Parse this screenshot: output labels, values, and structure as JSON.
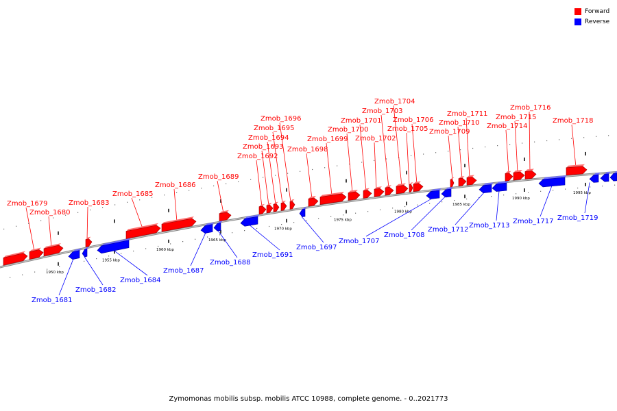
{
  "legend": {
    "forward_label": "Forward",
    "reverse_label": "Reverse",
    "forward_color": "#ff0000",
    "reverse_color": "#0000ff"
  },
  "caption": "Zymomonas mobilis subsp. mobilis ATCC 10988, complete genome. - 0..2021773",
  "scale_labels": [
    "1950 kbp",
    "1955 kbp",
    "1960 kbp",
    "1965 kbp",
    "1970 kbp",
    "1975 kbp",
    "1980 kbp",
    "1985 kbp",
    "1990 kbp",
    "1995 kbp"
  ],
  "genes_forward": [
    "Zmob_1679",
    "Zmob_1680",
    "Zmob_1683",
    "Zmob_1685",
    "Zmob_1686",
    "Zmob_1689",
    "Zmob_1692",
    "Zmob_1693",
    "Zmob_1694",
    "Zmob_1695",
    "Zmob_1696",
    "Zmob_1698",
    "Zmob_1699",
    "Zmob_1700",
    "Zmob_1701",
    "Zmob_1702",
    "Zmob_1703",
    "Zmob_1704",
    "Zmob_1705",
    "Zmob_1706",
    "Zmob_1709",
    "Zmob_1710",
    "Zmob_1711",
    "Zmob_1714",
    "Zmob_1715",
    "Zmob_1716",
    "Zmob_1718"
  ],
  "genes_reverse": [
    "Zmob_1681",
    "Zmob_1682",
    "Zmob_1684",
    "Zmob_1687",
    "Zmob_1688",
    "Zmob_1691",
    "Zmob_1697",
    "Zmob_1707",
    "Zmob_1708",
    "Zmob_1712",
    "Zmob_1713",
    "Zmob_1717",
    "Zmob_1719"
  ]
}
